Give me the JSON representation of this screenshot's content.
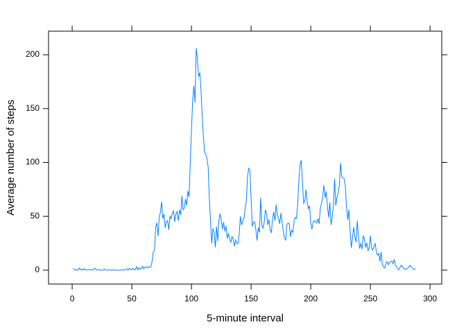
{
  "chart_data": {
    "type": "line",
    "xlabel": "5-minute interval",
    "ylabel": "Average number of steps",
    "xlim": [
      -19.8,
      309.8
    ],
    "ylim": [
      -12.9,
      221.9
    ],
    "xticks": [
      0,
      50,
      100,
      150,
      200,
      250,
      300
    ],
    "yticks": [
      0,
      50,
      100,
      150,
      200
    ],
    "series": [
      {
        "color": "#0080ff",
        "x": [
          1,
          2,
          3,
          4,
          5,
          6,
          7,
          8,
          9,
          10,
          11,
          12,
          13,
          14,
          15,
          16,
          17,
          18,
          19,
          20,
          21,
          22,
          23,
          24,
          25,
          26,
          27,
          28,
          29,
          30,
          31,
          32,
          33,
          34,
          35,
          36,
          37,
          38,
          39,
          40,
          41,
          42,
          43,
          44,
          45,
          46,
          47,
          48,
          49,
          50,
          51,
          52,
          53,
          54,
          55,
          56,
          57,
          58,
          59,
          60,
          61,
          62,
          63,
          64,
          65,
          66,
          67,
          68,
          69,
          70,
          71,
          72,
          73,
          74,
          75,
          76,
          77,
          78,
          79,
          80,
          81,
          82,
          83,
          84,
          85,
          86,
          87,
          88,
          89,
          90,
          91,
          92,
          93,
          94,
          95,
          96,
          97,
          98,
          99,
          100,
          101,
          102,
          103,
          104,
          105,
          106,
          107,
          108,
          109,
          110,
          111,
          112,
          113,
          114,
          115,
          116,
          117,
          118,
          119,
          120,
          121,
          122,
          123,
          124,
          125,
          126,
          127,
          128,
          129,
          130,
          131,
          132,
          133,
          134,
          135,
          136,
          137,
          138,
          139,
          140,
          141,
          142,
          143,
          144,
          145,
          146,
          147,
          148,
          149,
          150,
          151,
          152,
          153,
          154,
          155,
          156,
          157,
          158,
          159,
          160,
          161,
          162,
          163,
          164,
          165,
          166,
          167,
          168,
          169,
          170,
          171,
          172,
          173,
          174,
          175,
          176,
          177,
          178,
          179,
          180,
          181,
          182,
          183,
          184,
          185,
          186,
          187,
          188,
          189,
          190,
          191,
          192,
          193,
          194,
          195,
          196,
          197,
          198,
          199,
          200,
          201,
          202,
          203,
          204,
          205,
          206,
          207,
          208,
          209,
          210,
          211,
          212,
          213,
          214,
          215,
          216,
          217,
          218,
          219,
          220,
          221,
          222,
          223,
          224,
          225,
          226,
          227,
          228,
          229,
          230,
          231,
          232,
          233,
          234,
          235,
          236,
          237,
          238,
          239,
          240,
          241,
          242,
          243,
          244,
          245,
          246,
          247,
          248,
          249,
          250,
          251,
          252,
          253,
          254,
          255,
          256,
          257,
          258,
          259,
          260,
          261,
          262,
          263,
          264,
          265,
          266,
          267,
          268,
          269,
          270,
          271,
          272,
          273,
          274,
          275,
          276,
          277,
          278,
          279,
          280,
          281,
          282,
          283,
          284,
          285,
          286,
          287,
          288
        ],
        "values": [
          1.7,
          0.3,
          0.1,
          0.2,
          0.1,
          2.1,
          0.5,
          0.9,
          0,
          1.5,
          0.3,
          0.1,
          0.3,
          0.7,
          0.2,
          0.3,
          0,
          1.1,
          1.8,
          0.2,
          0.2,
          0.4,
          0.3,
          0,
          0,
          0,
          1.1,
          0,
          0,
          0.1,
          0,
          0.2,
          0,
          0,
          0.4,
          0,
          0,
          0,
          0,
          0,
          0.1,
          0.5,
          0,
          0,
          0.6,
          1.4,
          0,
          1.8,
          0.5,
          0.3,
          1.9,
          0.3,
          0.5,
          3.2,
          0.2,
          2.4,
          0.8,
          1.5,
          3.8,
          1.2,
          2.9,
          3.0,
          2.1,
          3.1,
          2.7,
          3.0,
          8.0,
          17.0,
          18.0,
          40.0,
          44.1,
          31.5,
          49.3,
          53.8,
          63.5,
          47.8,
          52.0,
          39.3,
          44.9,
          46.0,
          37.5,
          49.9,
          47.8,
          53.0,
          55.0,
          44.8,
          52.3,
          54.5,
          45.9,
          56.0,
          51.4,
          68.9,
          56.2,
          57.5,
          66.0,
          60.0,
          73.5,
          68.0,
          100.0,
          129.4,
          157.5,
          171.2,
          155.4,
          206.2,
          195.9,
          179.6,
          183.4,
          167.0,
          143.5,
          124.0,
          109.1,
          108.1,
          103.7,
          95.9,
          66.2,
          45.2,
          24.8,
          38.8,
          34.9,
          21.1,
          40.6,
          26.9,
          46.3,
          52.5,
          46.0,
          38.0,
          44.7,
          36.1,
          41.0,
          29.5,
          34.2,
          28.9,
          25.9,
          31.2,
          28.9,
          22.1,
          27.9,
          24.9,
          24.5,
          33.2,
          50.0,
          42.0,
          45.5,
          47.9,
          56.6,
          64.3,
          86.4,
          94.6,
          92.7,
          67.0,
          40.5,
          44.5,
          44.9,
          37.5,
          27.5,
          39.5,
          34.9,
          67.2,
          42.1,
          39.1,
          44.5,
          56.0,
          52.0,
          42.0,
          47.0,
          37.0,
          35.0,
          48.0,
          54.0,
          46.0,
          61.0,
          51.0,
          48.0,
          43.0,
          53.0,
          44.0,
          36.0,
          30.0,
          28.0,
          42.0,
          44.0,
          43.0,
          31.0,
          37.0,
          35.0,
          45.0,
          49.0,
          48.0,
          60.0,
          82.0,
          97.6,
          102.1,
          83.9,
          62.1,
          64.1,
          74.7,
          63.2,
          56.9,
          59.8,
          43.9,
          37.8,
          45.0,
          46.0,
          45.0,
          44.0,
          48.0,
          43.0,
          57.0,
          62.0,
          68.0,
          78.9,
          67.2,
          73.0,
          59.0,
          49.0,
          63.0,
          42.0,
          49.0,
          60.0,
          85.0,
          60.0,
          68.0,
          72.0,
          79.0,
          99.5,
          86.6,
          85.6,
          84.9,
          78.0,
          58.0,
          46.7,
          56.3,
          36.3,
          20.7,
          30.0,
          40.0,
          31.0,
          26.0,
          45.9,
          31.0,
          20.0,
          25.0,
          19.5,
          32.0,
          29.0,
          21.0,
          25.5,
          18.0,
          20.3,
          32.0,
          20.7,
          18.5,
          22.0,
          25.0,
          17.0,
          14.0,
          15.6,
          8.0,
          17.0,
          5.0,
          3.0,
          2.0,
          6.0,
          8.0,
          5.0,
          7.0,
          8.0,
          8.5,
          6.0,
          10.0,
          4.5,
          3.0,
          1.0,
          0.5,
          3.0,
          4.7,
          3.0,
          2.0,
          0.5,
          1.0,
          1.5,
          2.5,
          4.5,
          3.5,
          2.0,
          1.0,
          0.8,
          1.1
        ]
      }
    ]
  }
}
